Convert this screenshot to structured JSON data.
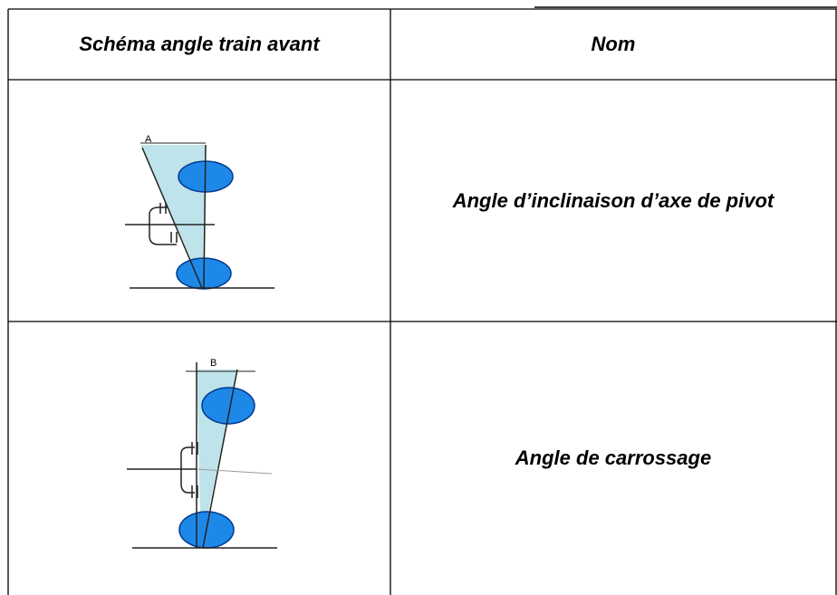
{
  "table": {
    "header": [
      "Schéma angle train avant",
      "Nom"
    ],
    "rows": [
      {
        "diagram_label": "A",
        "name": "Angle d’inclinaison d’axe de pivot"
      },
      {
        "diagram_label": "B",
        "name": "Angle de carrossage"
      }
    ]
  }
}
